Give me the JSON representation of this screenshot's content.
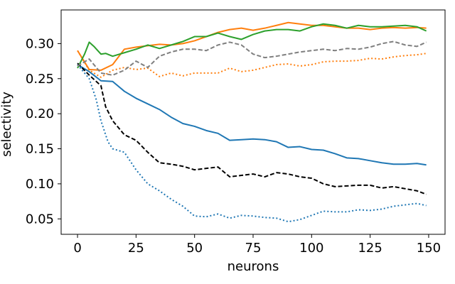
{
  "chart_data": {
    "type": "line",
    "xlabel": "neurons",
    "ylabel": "selectivity",
    "xlim": [
      -7,
      157
    ],
    "ylim": [
      0.028,
      0.348
    ],
    "xticks": [
      0,
      25,
      50,
      75,
      100,
      125,
      150
    ],
    "yticks": [
      0.05,
      0.1,
      0.15,
      0.2,
      0.25,
      0.3
    ],
    "ytick_labels": [
      "0.05",
      "0.10",
      "0.15",
      "0.20",
      "0.25",
      "0.30"
    ],
    "grid": false,
    "legend": "none",
    "series": [
      {
        "color": "#1f77b4",
        "style": "solid",
        "x": [
          0,
          5,
          10,
          15,
          20,
          25,
          30,
          35,
          40,
          45,
          50,
          55,
          60,
          65,
          70,
          75,
          80,
          85,
          90,
          95,
          100,
          105,
          110,
          115,
          120,
          125,
          130,
          135,
          140,
          145,
          149
        ],
        "y": [
          0.27,
          0.26,
          0.247,
          0.246,
          0.232,
          0.222,
          0.214,
          0.206,
          0.195,
          0.186,
          0.182,
          0.176,
          0.172,
          0.162,
          0.163,
          0.164,
          0.163,
          0.16,
          0.152,
          0.153,
          0.149,
          0.148,
          0.143,
          0.137,
          0.136,
          0.133,
          0.13,
          0.128,
          0.128,
          0.129,
          0.127
        ]
      },
      {
        "color": "#1f77b4",
        "style": "dotted",
        "x": [
          0,
          5,
          8,
          10,
          13,
          15,
          20,
          25,
          30,
          35,
          40,
          45,
          50,
          55,
          60,
          65,
          70,
          75,
          80,
          85,
          90,
          95,
          100,
          105,
          110,
          115,
          120,
          125,
          130,
          135,
          140,
          145,
          149
        ],
        "y": [
          0.27,
          0.25,
          0.22,
          0.19,
          0.16,
          0.15,
          0.145,
          0.12,
          0.1,
          0.09,
          0.078,
          0.068,
          0.054,
          0.053,
          0.057,
          0.051,
          0.055,
          0.054,
          0.052,
          0.051,
          0.046,
          0.049,
          0.055,
          0.061,
          0.06,
          0.06,
          0.063,
          0.062,
          0.064,
          0.068,
          0.07,
          0.072,
          0.069
        ]
      },
      {
        "color": "#000000",
        "style": "dashed",
        "x": [
          0,
          5,
          10,
          12,
          15,
          20,
          25,
          30,
          35,
          40,
          45,
          50,
          55,
          60,
          65,
          70,
          75,
          80,
          85,
          90,
          95,
          100,
          105,
          110,
          115,
          120,
          125,
          130,
          135,
          140,
          145,
          149
        ],
        "y": [
          0.272,
          0.255,
          0.24,
          0.21,
          0.19,
          0.17,
          0.162,
          0.145,
          0.13,
          0.128,
          0.125,
          0.12,
          0.122,
          0.124,
          0.11,
          0.112,
          0.114,
          0.11,
          0.116,
          0.114,
          0.11,
          0.108,
          0.1,
          0.096,
          0.097,
          0.098,
          0.098,
          0.094,
          0.096,
          0.093,
          0.09,
          0.085
        ]
      },
      {
        "color": "#ff7f0e",
        "style": "solid",
        "x": [
          0,
          5,
          10,
          15,
          20,
          25,
          30,
          35,
          40,
          45,
          50,
          55,
          60,
          65,
          70,
          75,
          80,
          85,
          90,
          95,
          100,
          105,
          110,
          115,
          120,
          125,
          130,
          135,
          140,
          145,
          149
        ],
        "y": [
          0.29,
          0.263,
          0.262,
          0.27,
          0.292,
          0.295,
          0.297,
          0.299,
          0.298,
          0.3,
          0.304,
          0.31,
          0.316,
          0.32,
          0.322,
          0.319,
          0.322,
          0.326,
          0.33,
          0.328,
          0.326,
          0.326,
          0.324,
          0.322,
          0.322,
          0.32,
          0.322,
          0.323,
          0.322,
          0.323,
          0.322
        ]
      },
      {
        "color": "#ff7f0e",
        "style": "dotted",
        "x": [
          0,
          5,
          10,
          15,
          20,
          25,
          30,
          35,
          40,
          45,
          50,
          55,
          60,
          65,
          70,
          75,
          80,
          85,
          90,
          95,
          100,
          105,
          110,
          115,
          120,
          125,
          130,
          135,
          140,
          145,
          149
        ],
        "y": [
          0.29,
          0.262,
          0.252,
          0.262,
          0.266,
          0.263,
          0.265,
          0.253,
          0.258,
          0.254,
          0.258,
          0.258,
          0.258,
          0.265,
          0.26,
          0.262,
          0.266,
          0.27,
          0.271,
          0.268,
          0.27,
          0.274,
          0.275,
          0.275,
          0.276,
          0.279,
          0.278,
          0.281,
          0.283,
          0.284,
          0.286
        ]
      },
      {
        "color": "#2ca02c",
        "style": "solid",
        "x": [
          0,
          3,
          5,
          7,
          10,
          12,
          15,
          20,
          25,
          30,
          35,
          40,
          45,
          50,
          55,
          60,
          65,
          70,
          75,
          80,
          85,
          90,
          95,
          100,
          105,
          110,
          115,
          120,
          125,
          130,
          135,
          140,
          145,
          149
        ],
        "y": [
          0.265,
          0.285,
          0.302,
          0.296,
          0.285,
          0.286,
          0.282,
          0.287,
          0.292,
          0.298,
          0.293,
          0.298,
          0.303,
          0.31,
          0.31,
          0.315,
          0.31,
          0.306,
          0.313,
          0.318,
          0.32,
          0.32,
          0.318,
          0.324,
          0.328,
          0.326,
          0.322,
          0.326,
          0.324,
          0.324,
          0.325,
          0.326,
          0.324,
          0.318
        ]
      },
      {
        "color": "#7f7f7f",
        "style": "dashed",
        "x": [
          0,
          5,
          10,
          15,
          20,
          25,
          30,
          35,
          40,
          45,
          50,
          55,
          60,
          65,
          70,
          75,
          80,
          85,
          90,
          95,
          100,
          105,
          110,
          115,
          120,
          125,
          130,
          135,
          140,
          145,
          149
        ],
        "y": [
          0.268,
          0.278,
          0.258,
          0.255,
          0.262,
          0.275,
          0.266,
          0.282,
          0.288,
          0.292,
          0.292,
          0.29,
          0.298,
          0.302,
          0.298,
          0.285,
          0.28,
          0.282,
          0.285,
          0.288,
          0.29,
          0.292,
          0.29,
          0.293,
          0.292,
          0.295,
          0.3,
          0.303,
          0.298,
          0.296,
          0.302
        ]
      }
    ]
  }
}
